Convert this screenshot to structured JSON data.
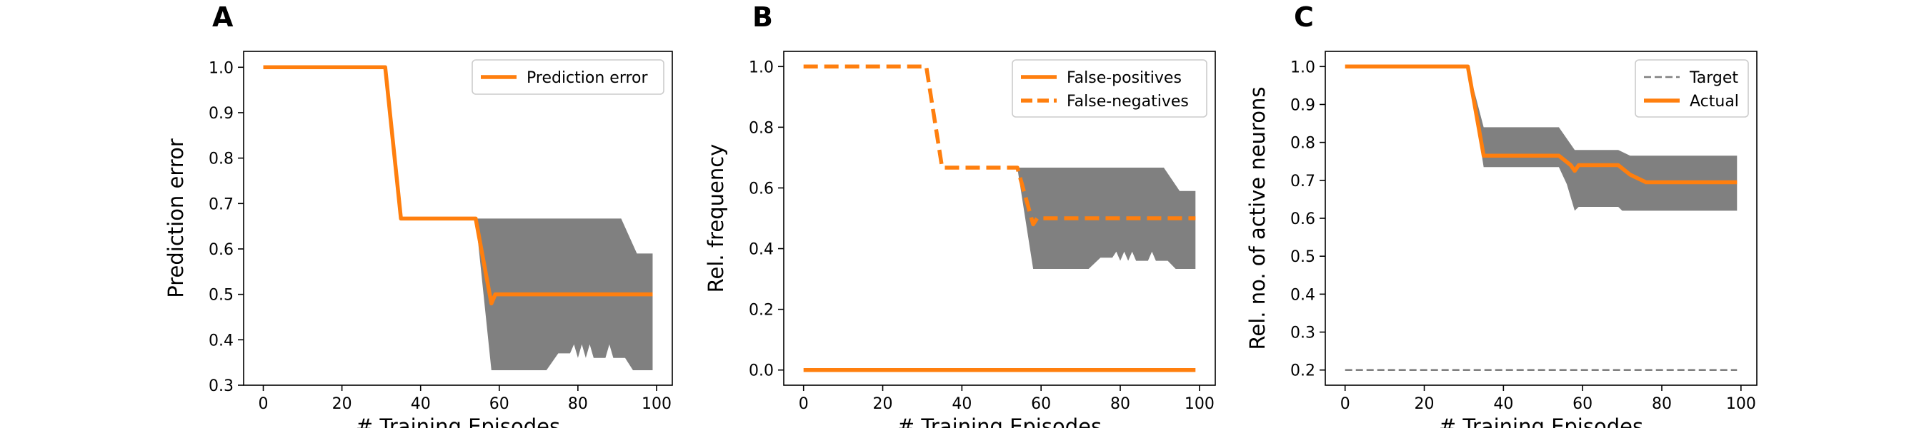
{
  "colors": {
    "orange": "#ff7f0e",
    "band": "#808080",
    "target": "#808080"
  },
  "chart_data": [
    {
      "type": "line",
      "panel_label": "A",
      "xlabel": "# Training Episodes",
      "ylabel": "Prediction error",
      "xlim": [
        -5,
        104
      ],
      "ylim": [
        0.3,
        1.035
      ],
      "xticks": [
        0,
        20,
        40,
        60,
        80,
        100
      ],
      "yticks": [
        0.3,
        0.4,
        0.5,
        0.6,
        0.7,
        0.8,
        0.9,
        1.0
      ],
      "ytick_decimals": 1,
      "legend_position": "top-right",
      "grid": false,
      "band": {
        "upper": [
          [
            54,
            0.667
          ],
          [
            91,
            0.667
          ],
          [
            95,
            0.59
          ],
          [
            99,
            0.59
          ]
        ],
        "lower": [
          [
            54,
            0.667
          ],
          [
            58,
            0.333
          ],
          [
            72,
            0.333
          ],
          [
            75,
            0.37
          ],
          [
            78,
            0.37
          ],
          [
            79,
            0.39
          ],
          [
            80,
            0.36
          ],
          [
            81,
            0.39
          ],
          [
            82,
            0.36
          ],
          [
            83,
            0.39
          ],
          [
            84,
            0.36
          ],
          [
            87,
            0.36
          ],
          [
            88,
            0.39
          ],
          [
            89,
            0.36
          ],
          [
            92,
            0.36
          ],
          [
            94,
            0.333
          ],
          [
            99,
            0.333
          ]
        ]
      },
      "series": [
        {
          "name": "Prediction error",
          "style": "solid",
          "points": [
            [
              0,
              1.0
            ],
            [
              31,
              1.0
            ],
            [
              35,
              0.667
            ],
            [
              54,
              0.667
            ],
            [
              58,
              0.48
            ],
            [
              59,
              0.5
            ],
            [
              99,
              0.5
            ]
          ]
        }
      ]
    },
    {
      "type": "line",
      "panel_label": "B",
      "xlabel": "# Training Episodes",
      "ylabel": "Rel. frequency",
      "xlim": [
        -5,
        104
      ],
      "ylim": [
        -0.05,
        1.05
      ],
      "xticks": [
        0,
        20,
        40,
        60,
        80,
        100
      ],
      "yticks": [
        0.0,
        0.2,
        0.4,
        0.6,
        0.8,
        1.0
      ],
      "ytick_decimals": 1,
      "legend_position": "top-right",
      "grid": false,
      "band": {
        "upper": [
          [
            54,
            0.667
          ],
          [
            91,
            0.667
          ],
          [
            95,
            0.59
          ],
          [
            99,
            0.59
          ]
        ],
        "lower": [
          [
            54,
            0.667
          ],
          [
            58,
            0.333
          ],
          [
            72,
            0.333
          ],
          [
            75,
            0.37
          ],
          [
            78,
            0.37
          ],
          [
            79,
            0.39
          ],
          [
            80,
            0.36
          ],
          [
            81,
            0.39
          ],
          [
            82,
            0.36
          ],
          [
            83,
            0.39
          ],
          [
            84,
            0.36
          ],
          [
            87,
            0.36
          ],
          [
            88,
            0.39
          ],
          [
            89,
            0.36
          ],
          [
            92,
            0.36
          ],
          [
            94,
            0.333
          ],
          [
            99,
            0.333
          ]
        ]
      },
      "series": [
        {
          "name": "False-positives",
          "style": "solid",
          "points": [
            [
              0,
              0.0
            ],
            [
              99,
              0.0
            ]
          ]
        },
        {
          "name": "False-negatives",
          "style": "dashed",
          "points": [
            [
              0,
              1.0
            ],
            [
              31,
              1.0
            ],
            [
              35,
              0.667
            ],
            [
              54,
              0.667
            ],
            [
              58,
              0.48
            ],
            [
              59,
              0.5
            ],
            [
              99,
              0.5
            ]
          ]
        }
      ]
    },
    {
      "type": "line",
      "panel_label": "C",
      "xlabel": "# Training Episodes",
      "ylabel": "Rel. no. of active neurons",
      "xlim": [
        -5,
        104
      ],
      "ylim": [
        0.16,
        1.04
      ],
      "xticks": [
        0,
        20,
        40,
        60,
        80,
        100
      ],
      "yticks": [
        0.2,
        0.3,
        0.4,
        0.5,
        0.6,
        0.7,
        0.8,
        0.9,
        1.0
      ],
      "ytick_decimals": 1,
      "legend_position": "top-right",
      "grid": false,
      "band": {
        "upper": [
          [
            31,
            1.0
          ],
          [
            35,
            0.84
          ],
          [
            54,
            0.84
          ],
          [
            58,
            0.78
          ],
          [
            69,
            0.78
          ],
          [
            72,
            0.765
          ],
          [
            99,
            0.765
          ]
        ],
        "lower": [
          [
            31,
            1.0
          ],
          [
            35,
            0.735
          ],
          [
            54,
            0.735
          ],
          [
            56,
            0.69
          ],
          [
            58,
            0.62
          ],
          [
            59,
            0.63
          ],
          [
            69,
            0.63
          ],
          [
            70,
            0.62
          ],
          [
            99,
            0.62
          ]
        ]
      },
      "series": [
        {
          "name": "Target",
          "style": "dashed-thin",
          "points": [
            [
              0,
              0.2
            ],
            [
              99,
              0.2
            ]
          ]
        },
        {
          "name": "Actual",
          "style": "solid",
          "points": [
            [
              0,
              1.0
            ],
            [
              31,
              1.0
            ],
            [
              35,
              0.765
            ],
            [
              54,
              0.765
            ],
            [
              57,
              0.74
            ],
            [
              58,
              0.725
            ],
            [
              59,
              0.74
            ],
            [
              69,
              0.74
            ],
            [
              72,
              0.715
            ],
            [
              76,
              0.695
            ],
            [
              99,
              0.695
            ]
          ]
        }
      ]
    }
  ]
}
